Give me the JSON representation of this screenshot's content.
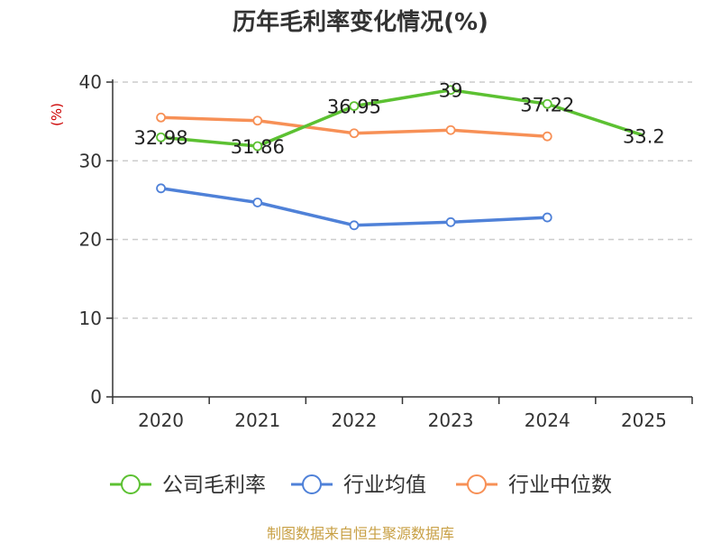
{
  "title": "历年毛利率变化情况(%)",
  "source": "制图数据来自恒生聚源数据库",
  "chart_data": {
    "type": "line",
    "title": "历年毛利率变化情况(%)",
    "ylabel": "(%)",
    "xlabel": "",
    "categories": [
      "2020",
      "2021",
      "2022",
      "2023",
      "2024",
      "2025"
    ],
    "ylim": [
      0,
      40
    ],
    "yticks": [
      "0",
      "10",
      "20",
      "30",
      "40"
    ],
    "grid": true,
    "legend_position": "bottom",
    "series": [
      {
        "name": "公司毛利率",
        "color": "#5cc132",
        "values": [
          32.98,
          31.86,
          36.95,
          39,
          37.22,
          33.2
        ],
        "labels": [
          "32.98",
          "31.86",
          "36.95",
          "39",
          "37.22",
          "33.2"
        ],
        "show_marker": [
          true,
          true,
          true,
          true,
          true,
          false
        ]
      },
      {
        "name": "行业均值",
        "color": "#4f81d8",
        "values": [
          26.5,
          24.7,
          21.8,
          22.2,
          22.8,
          null
        ]
      },
      {
        "name": "行业中位数",
        "color": "#f79056",
        "values": [
          35.5,
          35.1,
          33.5,
          33.9,
          33.1,
          null
        ]
      }
    ]
  }
}
